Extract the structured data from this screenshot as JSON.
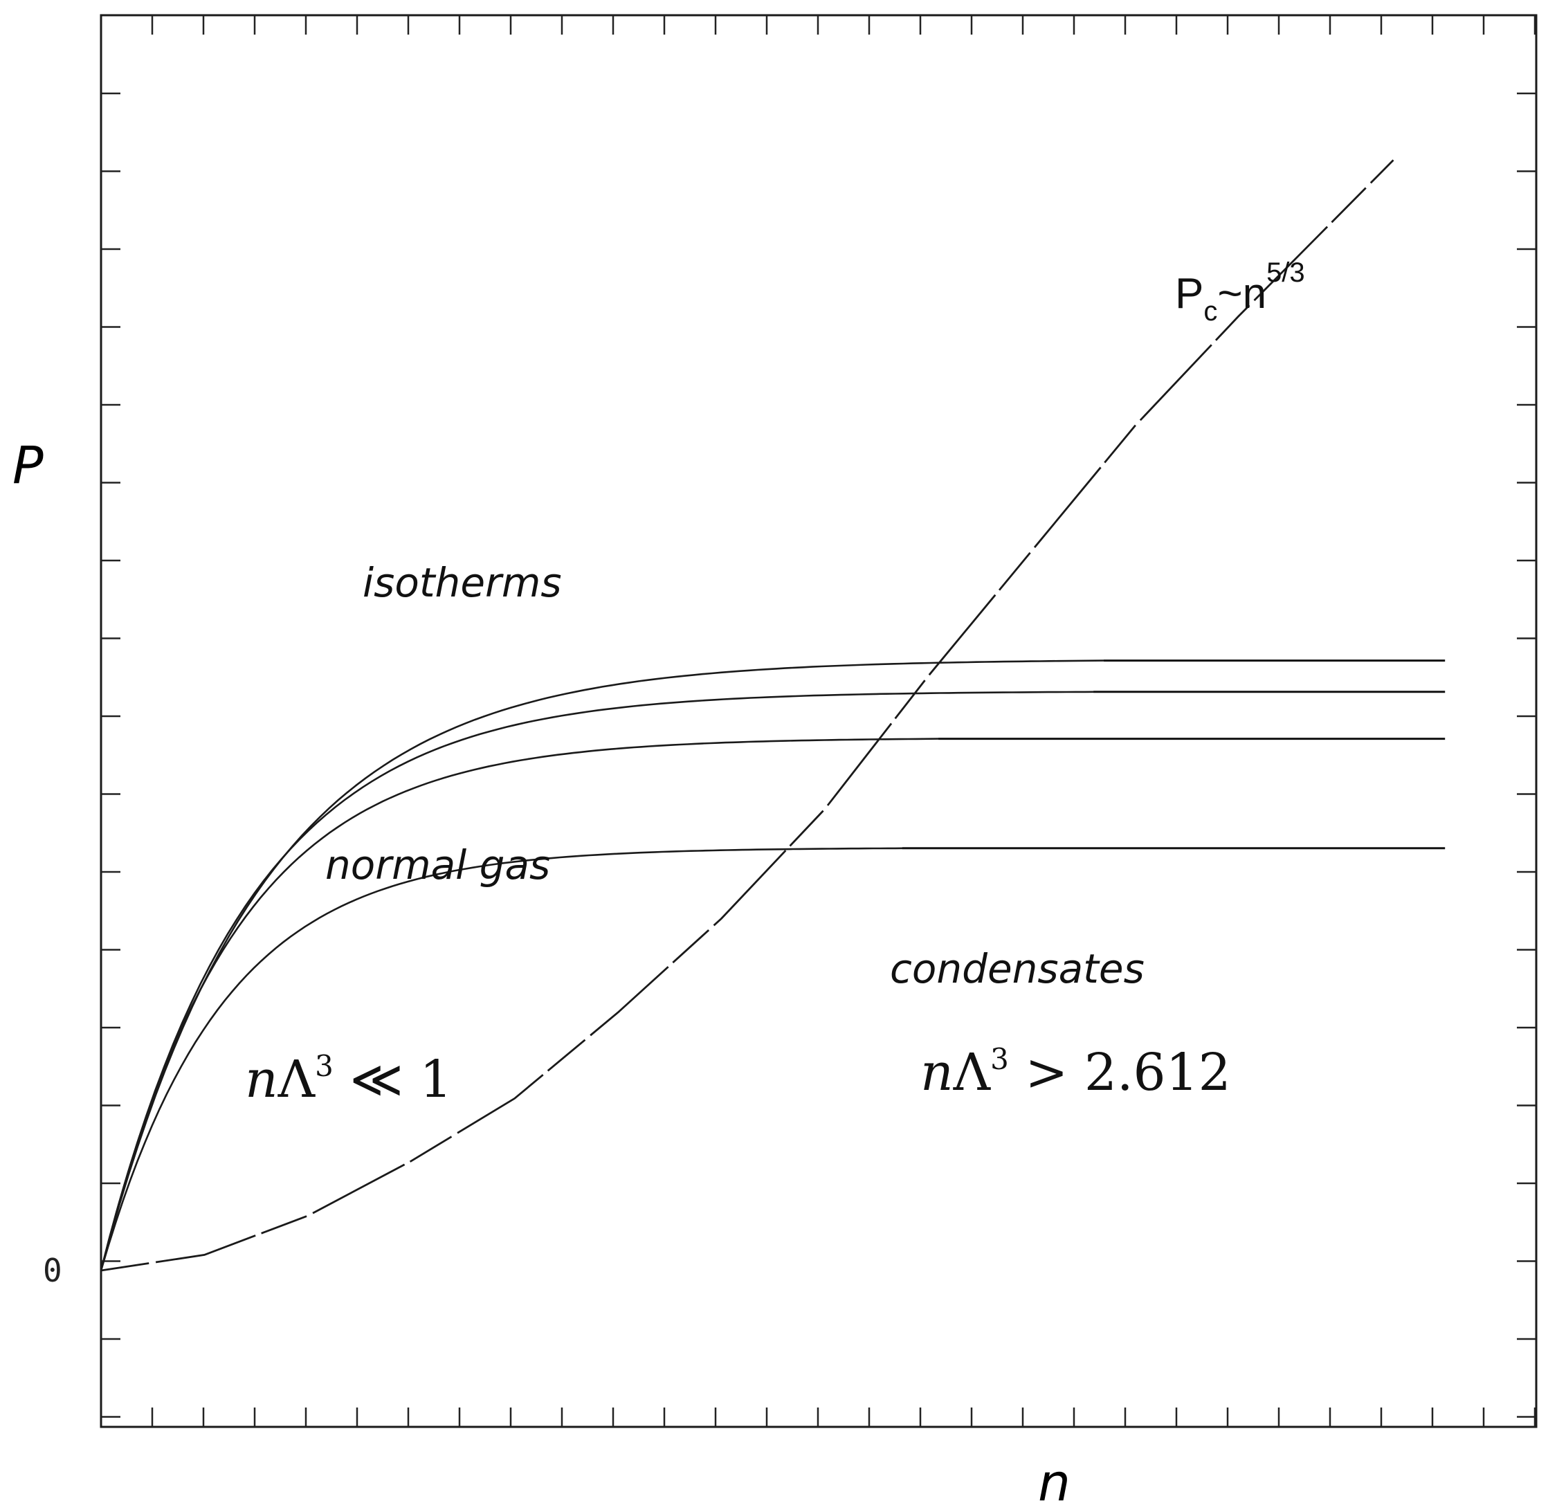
{
  "chart_data": {
    "type": "line",
    "title": "",
    "xlabel": "n",
    "ylabel": "P",
    "xlim": [
      0,
      2.6
    ],
    "ylim": [
      -0.2,
      1.5
    ],
    "tick_labels": {
      "y_zero": "0"
    },
    "grid": false,
    "critical_curve": {
      "label_base": "P",
      "label_sub": "c",
      "label_mid": "~n",
      "label_sup": "5/3",
      "exponent": 1.6667,
      "x": [
        0.0,
        0.2,
        0.4,
        0.6,
        0.8,
        1.0,
        1.2,
        1.4,
        1.6,
        1.8,
        2.0,
        2.2,
        2.5
      ],
      "y": [
        0.0,
        0.02,
        0.07,
        0.14,
        0.22,
        0.33,
        0.45,
        0.59,
        0.76,
        0.92,
        1.08,
        1.22,
        1.42
      ]
    },
    "isotherms": {
      "label": "isotherms",
      "series": [
        {
          "saturation_n": 1.94,
          "plateau": 0.78,
          "n_end": 2.6
        },
        {
          "saturation_n": 1.92,
          "plateau": 0.74,
          "n_end": 2.6
        },
        {
          "saturation_n": 1.62,
          "plateau": 0.68,
          "n_end": 2.6
        },
        {
          "saturation_n": 1.55,
          "plateau": 0.54,
          "n_end": 2.6
        }
      ]
    },
    "annotations": {
      "isotherms_label": "isotherms",
      "normal_gas_label": "normal gas",
      "condensates_label": "condensates",
      "low_density_var": "n",
      "low_density_sym": "Λ",
      "low_density_exp": "3",
      "low_density_rel": " ≪ 1",
      "high_density_var": "n",
      "high_density_sym": "Λ",
      "high_density_exp": "3",
      "high_density_rel": " > 2.612"
    }
  }
}
